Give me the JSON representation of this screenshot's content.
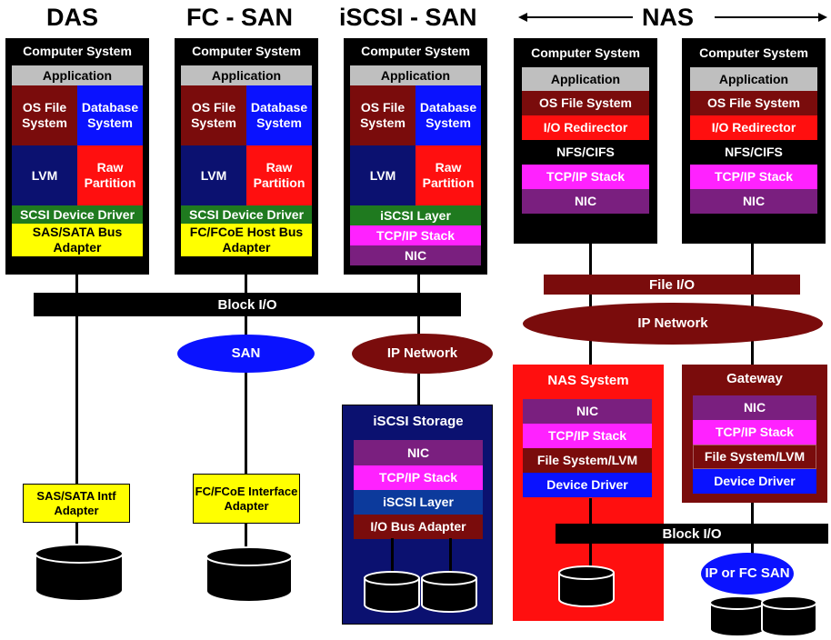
{
  "headers": {
    "das": "DAS",
    "fc": "FC - SAN",
    "iscsi": "iSCSI - SAN",
    "nas": "NAS"
  },
  "computer_system": "Computer System",
  "stack": {
    "application": "Application",
    "os_file_system": "OS File System",
    "database_system": "Database System",
    "lvm": "LVM",
    "raw_partition": "Raw Partition",
    "scsi_driver": "SCSI Device Driver",
    "sas_adapter": "SAS/SATA Bus Adapter",
    "fc_adapter": "FC/FCoE Host Bus Adapter",
    "iscsi_layer": "iSCSI Layer",
    "tcpip": "TCP/IP Stack",
    "nic": "NIC",
    "io_redirector": "I/O Redirector",
    "nfs_cifs": "NFS/CIFS"
  },
  "block_io": "Block I/O",
  "file_io": "File I/O",
  "ip_network": "IP Network",
  "san": "SAN",
  "sas_intf_adapter": "SAS/SATA Intf Adapter",
  "fc_intf_adapter": "FC/FCoE Interface Adapter",
  "iscsi_storage": {
    "title": "iSCSI Storage",
    "layers": [
      "NIC",
      "TCP/IP Stack",
      "iSCSI Layer",
      "I/O Bus Adapter"
    ]
  },
  "nas_system": {
    "title": "NAS System",
    "layers": [
      "NIC",
      "TCP/IP Stack",
      "File System/LVM",
      "Device Driver"
    ]
  },
  "gateway": {
    "title": "Gateway",
    "layers": [
      "NIC",
      "TCP/IP Stack",
      "File System/LVM",
      "Device Driver"
    ]
  },
  "ip_fc_san": "IP or FC SAN",
  "colors": {
    "maroon": "#7a0c0c",
    "blue": "#0a12ff",
    "navy": "#0b1170",
    "red": "#ff0f0f",
    "green": "#1f7a1f",
    "yellow": "#ffff00",
    "magenta": "#ff22ff",
    "purple": "#7a1f7f"
  }
}
